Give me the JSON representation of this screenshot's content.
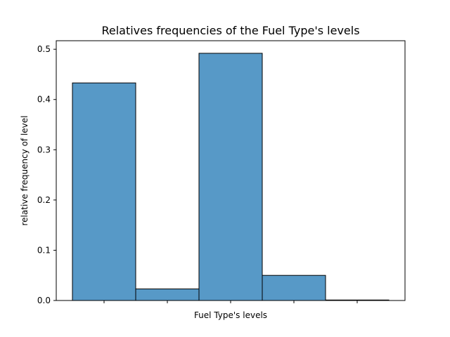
{
  "chart_data": {
    "type": "bar",
    "title": "Relatives frequencies of the Fuel Type's levels",
    "xlabel": "Fuel Type's levels",
    "ylabel": "relative frequency of level",
    "categories": [
      "",
      "",
      "",
      "",
      ""
    ],
    "values": [
      0.433,
      0.023,
      0.492,
      0.05,
      0.001
    ],
    "ylim": [
      0,
      0.517
    ],
    "yticks": [
      "0.0",
      "0.1",
      "0.2",
      "0.3",
      "0.4",
      "0.5"
    ],
    "grid": false,
    "bar_color": "#5799c7",
    "edge_color": "#000000"
  }
}
